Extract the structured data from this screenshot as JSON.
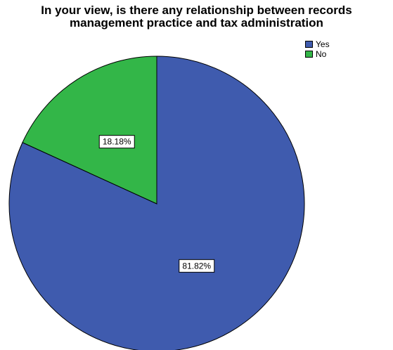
{
  "chart_data": {
    "type": "pie",
    "title": "In your view, is there any relationship between records\nmanagement practice and tax administration",
    "categories": [
      "Yes",
      "No"
    ],
    "values": [
      81.82,
      18.18
    ],
    "data_labels": [
      "81.82%",
      "18.18%"
    ],
    "colors": [
      "#3F5BAE",
      "#33B648"
    ],
    "legend_position": "top-right",
    "start_angle_deg": 0,
    "direction": "clockwise"
  }
}
